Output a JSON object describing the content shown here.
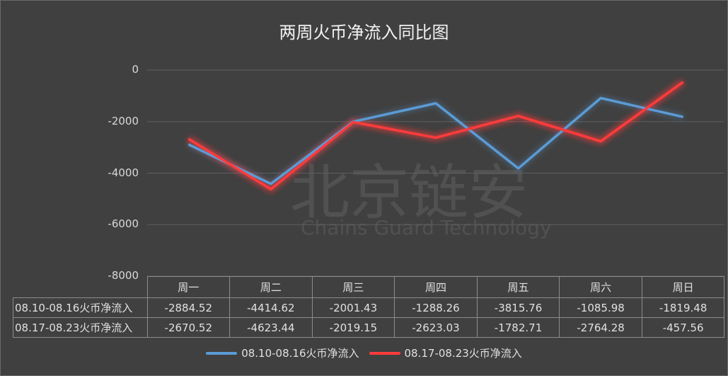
{
  "chart_data": {
    "type": "line",
    "title": "两周火币净流入同比图",
    "categories": [
      "周一",
      "周二",
      "周三",
      "周四",
      "周五",
      "周六",
      "周日"
    ],
    "ylim": [
      -8000,
      0
    ],
    "yticks": [
      0,
      -2000,
      -4000,
      -6000,
      -8000
    ],
    "grid": true,
    "legend_placement": "bottom",
    "series": [
      {
        "name": "08.10-08.16火币净流入",
        "color": "#5b9bd5",
        "values": [
          -2884.52,
          -4414.62,
          -2001.43,
          -1288.26,
          -3815.76,
          -1085.98,
          -1819.48
        ]
      },
      {
        "name": "08.17-08.23火币净流入",
        "color": "#ff3b3b",
        "values": [
          -2670.52,
          -4623.44,
          -2019.15,
          -2623.03,
          -1782.71,
          -2764.28,
          -457.56
        ]
      }
    ],
    "data_table": true
  },
  "watermark": {
    "cn": "北京链安",
    "en": "Chains Guard Technology"
  }
}
